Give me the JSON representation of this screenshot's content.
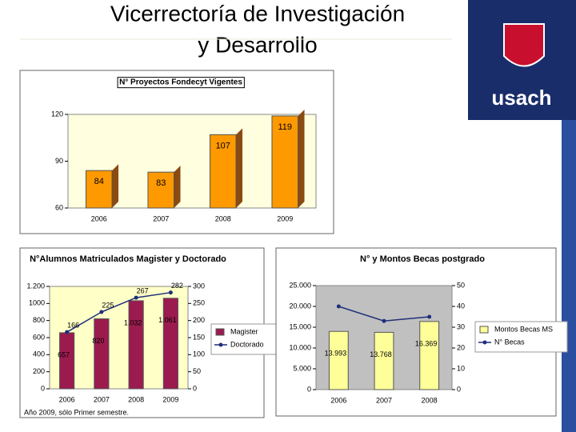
{
  "header": {
    "title_lines": [
      "Vicerrectoría de Investigación",
      "y Desarrollo"
    ],
    "logo": "usach"
  },
  "chart_data": [
    {
      "type": "bar",
      "title": "N° Proyectos Fondecyt Vigentes",
      "categories": [
        "2006",
        "2007",
        "2008",
        "2009"
      ],
      "values": [
        84,
        83,
        107,
        119
      ],
      "color": "#ff9900",
      "ylim": [
        60,
        120
      ],
      "yticks": [
        60,
        90,
        120
      ]
    },
    {
      "type": "combo",
      "title": "N°Alumnos Matriculados Magister y Doctorado",
      "categories": [
        "2006",
        "2007",
        "2008",
        "2009"
      ],
      "series": [
        {
          "name": "Magister",
          "type": "bar",
          "color": "#9b1b4f",
          "values": [
            657,
            820,
            1032,
            1061
          ],
          "value_labels": [
            "657",
            "820",
            "1.032",
            "1.061"
          ]
        },
        {
          "name": "Doctorado",
          "type": "line",
          "axis": "y2",
          "color": "#1f2f7a",
          "values": [
            166,
            225,
            267,
            282
          ]
        }
      ],
      "ylim": [
        0,
        1200
      ],
      "yticks": [
        0,
        200,
        400,
        600,
        800,
        {
          "value": 1000,
          "label": "1000"
        },
        {
          "value": 1200,
          "label": "1.200"
        }
      ],
      "y2lim": [
        0,
        300
      ],
      "y2ticks": [
        0,
        50,
        100,
        150,
        200,
        250,
        300
      ],
      "legend": "right",
      "note": "Año 2009, sólo Primer semestre."
    },
    {
      "type": "combo",
      "title": "N° y Montos Becas postgrado",
      "categories": [
        "2006",
        "2007",
        "2008"
      ],
      "series": [
        {
          "name": "Montos Becas MS",
          "type": "bar",
          "color": "#ffff99",
          "values": [
            13993,
            13768,
            16369
          ],
          "value_labels": [
            "13.993",
            "13.768",
            "16.369"
          ]
        },
        {
          "name": "N° Becas",
          "type": "line",
          "axis": "y2",
          "color": "#1f2f7a",
          "values": [
            40,
            33,
            35
          ]
        }
      ],
      "ylim": [
        0,
        25000
      ],
      "yticks": [
        0,
        {
          "value": 5000,
          "label": "5.000"
        },
        {
          "value": 10000,
          "label": "10.000"
        },
        {
          "value": 15000,
          "label": "15.000"
        },
        {
          "value": 20000,
          "label": "20.000"
        },
        {
          "value": 25000,
          "label": "25.000"
        }
      ],
      "y2lim": [
        0,
        50
      ],
      "y2ticks": [
        0,
        10,
        20,
        30,
        40,
        50
      ],
      "legend": "right"
    }
  ]
}
